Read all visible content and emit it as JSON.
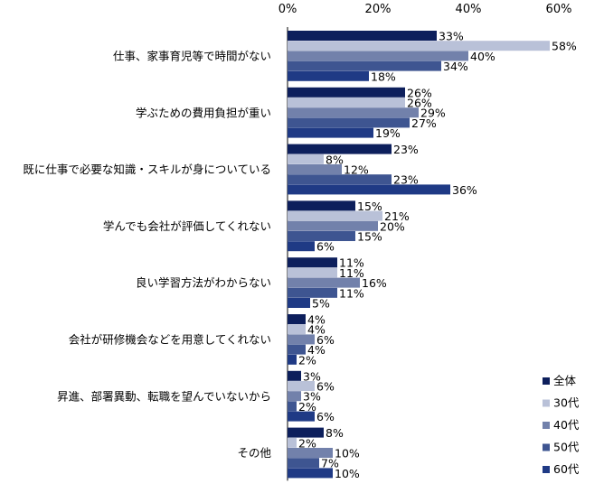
{
  "chart_data": {
    "type": "bar",
    "orientation": "horizontal",
    "title": "",
    "xlabel": "",
    "ylabel": "",
    "xlim": [
      0,
      60
    ],
    "ticks": [
      "0%",
      "20%",
      "40%",
      "60%"
    ],
    "tick_values": [
      0,
      20,
      40,
      60
    ],
    "grid": false,
    "legend_position": "bottom-right",
    "value_suffix": "%",
    "categories": [
      "仕事、家事育児等で時間がない",
      "学ぶための費用負担が重い",
      "既に仕事で必要な知識・スキルが身についている",
      "学んでも会社が評価してくれない",
      "良い学習方法がわからない",
      "会社が研修機会などを用意してくれない",
      "昇進、部署異動、転職を望んでいないから",
      "その他"
    ],
    "series": [
      {
        "name": "全体",
        "color": "#0d1f5c",
        "values": [
          33,
          26,
          23,
          15,
          11,
          4,
          3,
          8
        ]
      },
      {
        "name": "30代",
        "color": "#b9c1d8",
        "values": [
          58,
          26,
          8,
          21,
          11,
          4,
          6,
          2
        ]
      },
      {
        "name": "40代",
        "color": "#7281ab",
        "values": [
          40,
          29,
          12,
          20,
          16,
          6,
          3,
          10
        ]
      },
      {
        "name": "50代",
        "color": "#3e5591",
        "values": [
          34,
          27,
          23,
          15,
          11,
          4,
          2,
          7
        ]
      },
      {
        "name": "60代",
        "color": "#1f3a85",
        "values": [
          18,
          19,
          36,
          6,
          5,
          2,
          6,
          10
        ]
      }
    ]
  }
}
